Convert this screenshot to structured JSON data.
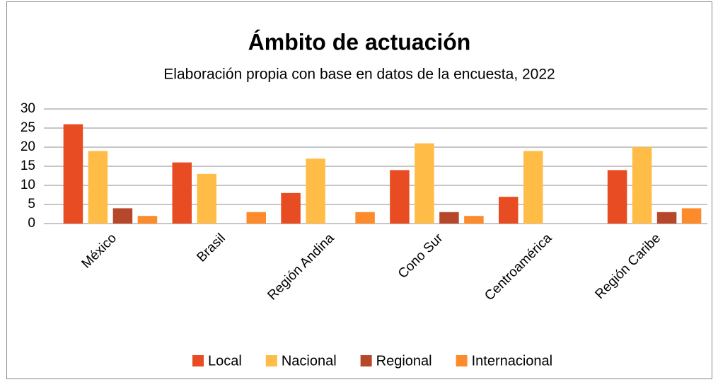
{
  "chart_data": {
    "type": "bar",
    "title": "Ámbito de actuación",
    "subtitle": "Elaboración propia con base en datos de la encuesta, 2022",
    "categories": [
      "México",
      "Brasil",
      "Región Andina",
      "Cono Sur",
      "Centroamérica",
      "Región Caribe"
    ],
    "series": [
      {
        "name": "Local",
        "color": "#e84c22",
        "values": [
          26,
          16,
          8,
          14,
          7,
          14
        ]
      },
      {
        "name": "Nacional",
        "color": "#ffbd47",
        "values": [
          19,
          13,
          17,
          21,
          19,
          20
        ]
      },
      {
        "name": "Regional",
        "color": "#b7472a",
        "values": [
          4,
          0,
          0,
          3,
          0,
          3
        ]
      },
      {
        "name": "Internacional",
        "color": "#fd8b2b",
        "values": [
          2,
          3,
          3,
          2,
          0,
          4
        ]
      }
    ],
    "ylim": [
      0,
      30
    ],
    "yticks": [
      0,
      5,
      10,
      15,
      20,
      25,
      30
    ],
    "grid": true,
    "legend": "bottom"
  }
}
